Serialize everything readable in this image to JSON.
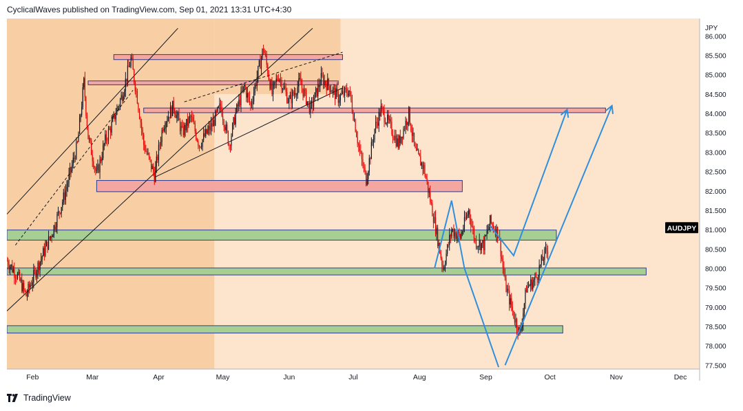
{
  "header": {
    "text": "CyclicalWaves published on TradingView.com, Sep 01, 2021 13:31 UTC+4:30"
  },
  "footer": {
    "brand": "TradingView"
  },
  "colors": {
    "background": "#fde4cc",
    "channel_fill": "#f8cfa5",
    "resistance_fill": "#f4a6a0",
    "resistance_border": "#2a3a8f",
    "support_fill": "#a8cf93",
    "support_border": "#2a3a8f",
    "candle_up": "#131722",
    "candle_down": "#e00000",
    "projection": "#2f8fdd",
    "symbol_badge": "#000000"
  },
  "chart_data": {
    "type": "candlestick",
    "symbol": "AUDJPY",
    "currency": "JPY",
    "x_start": "2021-01-20",
    "x_end": "2021-12-10",
    "ylim": [
      77.4,
      86.45
    ],
    "y_ticks": [
      "86.000",
      "85.500",
      "85.000",
      "84.500",
      "84.000",
      "83.500",
      "83.000",
      "82.500",
      "82.000",
      "81.500",
      "81.000",
      "80.500",
      "80.000",
      "79.500",
      "79.000",
      "78.500",
      "78.000",
      "77.500"
    ],
    "y_tick_values": [
      86.0,
      85.5,
      85.0,
      84.5,
      84.0,
      83.5,
      83.0,
      82.5,
      82.0,
      81.5,
      81.0,
      80.5,
      80.0,
      79.5,
      79.0,
      78.5,
      78.0,
      77.5
    ],
    "x_ticks": [
      {
        "label": "Feb",
        "date": "2021-02-01"
      },
      {
        "label": "Mar",
        "date": "2021-03-01"
      },
      {
        "label": "Apr",
        "date": "2021-04-01"
      },
      {
        "label": "May",
        "date": "2021-05-01"
      },
      {
        "label": "Jun",
        "date": "2021-06-01"
      },
      {
        "label": "Jul",
        "date": "2021-07-01"
      },
      {
        "label": "Aug",
        "date": "2021-08-01"
      },
      {
        "label": "Sep",
        "date": "2021-09-01"
      },
      {
        "label": "Oct",
        "date": "2021-10-01"
      },
      {
        "label": "Nov",
        "date": "2021-11-01"
      },
      {
        "label": "Dec",
        "date": "2021-12-01"
      }
    ],
    "price_path": [
      [
        "2021-01-20",
        80.2
      ],
      [
        "2021-01-25",
        79.8
      ],
      [
        "2021-01-29",
        79.3
      ],
      [
        "2021-02-03",
        80.0
      ],
      [
        "2021-02-10",
        80.9
      ],
      [
        "2021-02-16",
        81.9
      ],
      [
        "2021-02-22",
        83.2
      ],
      [
        "2021-02-25",
        84.8
      ],
      [
        "2021-02-27",
        83.4
      ],
      [
        "2021-03-03",
        82.4
      ],
      [
        "2021-03-07",
        83.3
      ],
      [
        "2021-03-10",
        83.7
      ],
      [
        "2021-03-15",
        84.5
      ],
      [
        "2021-03-19",
        85.4
      ],
      [
        "2021-03-22",
        84.4
      ],
      [
        "2021-03-25",
        83.2
      ],
      [
        "2021-03-30",
        82.4
      ],
      [
        "2021-04-03",
        83.7
      ],
      [
        "2021-04-08",
        84.2
      ],
      [
        "2021-04-12",
        83.5
      ],
      [
        "2021-04-16",
        83.9
      ],
      [
        "2021-04-20",
        83.2
      ],
      [
        "2021-04-26",
        83.7
      ],
      [
        "2021-04-30",
        84.2
      ],
      [
        "2021-05-04",
        83.2
      ],
      [
        "2021-05-07",
        84.0
      ],
      [
        "2021-05-11",
        84.7
      ],
      [
        "2021-05-14",
        84.2
      ],
      [
        "2021-05-18",
        85.2
      ],
      [
        "2021-05-20",
        85.7
      ],
      [
        "2021-05-24",
        84.5
      ],
      [
        "2021-05-27",
        85.0
      ],
      [
        "2021-06-01",
        84.3
      ],
      [
        "2021-06-06",
        84.8
      ],
      [
        "2021-06-11",
        84.1
      ],
      [
        "2021-06-16",
        84.9
      ],
      [
        "2021-06-20",
        84.7
      ],
      [
        "2021-06-24",
        84.4
      ],
      [
        "2021-06-29",
        84.6
      ],
      [
        "2021-07-01",
        84.0
      ],
      [
        "2021-07-04",
        83.0
      ],
      [
        "2021-07-07",
        82.3
      ],
      [
        "2021-07-11",
        83.6
      ],
      [
        "2021-07-14",
        84.1
      ],
      [
        "2021-07-18",
        83.7
      ],
      [
        "2021-07-22",
        83.2
      ],
      [
        "2021-07-27",
        84.0
      ],
      [
        "2021-07-30",
        83.0
      ],
      [
        "2021-08-03",
        82.6
      ],
      [
        "2021-08-08",
        81.2
      ],
      [
        "2021-08-12",
        80.0
      ],
      [
        "2021-08-16",
        81.0
      ],
      [
        "2021-08-20",
        80.8
      ],
      [
        "2021-08-24",
        81.5
      ],
      [
        "2021-08-27",
        80.7
      ],
      [
        "2021-08-31",
        80.6
      ],
      [
        "2021-09-03",
        81.2
      ],
      [
        "2021-09-07",
        80.9
      ],
      [
        "2021-09-10",
        79.6
      ],
      [
        "2021-09-14",
        78.8
      ],
      [
        "2021-09-17",
        78.3
      ],
      [
        "2021-09-20",
        79.5
      ],
      [
        "2021-09-24",
        79.7
      ],
      [
        "2021-09-28",
        80.3
      ],
      [
        "2021-09-30",
        80.5
      ]
    ],
    "zones": [
      {
        "kind": "resistance",
        "x0": "2021-03-11",
        "x1": "2021-06-26",
        "y0": 85.39,
        "y1": 85.52
      },
      {
        "kind": "resistance",
        "x0": "2021-02-27",
        "x1": "2021-06-24",
        "y0": 84.74,
        "y1": 84.84
      },
      {
        "kind": "resistance",
        "x0": "2021-03-25",
        "x1": "2021-10-27",
        "y0": 84.02,
        "y1": 84.14
      },
      {
        "kind": "resistance",
        "x0": "2021-03-03",
        "x1": "2021-08-21",
        "y0": 81.98,
        "y1": 82.27
      },
      {
        "kind": "support",
        "x0": "2021-01-20",
        "x1": "2021-10-04",
        "y0": 80.73,
        "y1": 80.99
      },
      {
        "kind": "support",
        "x0": "2021-01-20",
        "x1": "2021-11-15",
        "y0": 79.83,
        "y1": 80.01
      },
      {
        "kind": "support",
        "x0": "2021-01-20",
        "x1": "2021-10-07",
        "y0": 78.33,
        "y1": 78.52
      }
    ],
    "channel_shading": [
      {
        "x0": "2021-01-20",
        "x1": "2021-04-27",
        "y0": 77.4,
        "y1": 86.45
      },
      {
        "x0": "2021-04-27",
        "x1": "2021-06-25",
        "y0": 84.5,
        "y1": 86.45
      }
    ],
    "trend_lines": [
      {
        "style": "solid",
        "from": [
          "2021-01-20",
          81.4
        ],
        "to": [
          "2021-04-10",
          86.2
        ]
      },
      {
        "style": "solid",
        "from": [
          "2021-01-20",
          78.9
        ],
        "to": [
          "2021-04-27",
          83.9
        ]
      },
      {
        "style": "dashed",
        "from": [
          "2021-01-24",
          80.6
        ],
        "to": [
          "2021-03-20",
          84.6
        ]
      },
      {
        "style": "solid",
        "from": [
          "2021-04-27",
          83.9
        ],
        "to": [
          "2021-06-12",
          86.2
        ]
      },
      {
        "style": "dashed",
        "from": [
          "2021-04-13",
          84.3
        ],
        "to": [
          "2021-06-26",
          85.58
        ]
      },
      {
        "style": "solid",
        "from": [
          "2021-03-30",
          82.35
        ],
        "to": [
          "2021-06-26",
          84.66
        ]
      }
    ],
    "projections": [
      {
        "points": [
          [
            "2021-08-08",
            80.0
          ],
          [
            "2021-08-16",
            81.75
          ],
          [
            "2021-08-22",
            80.0
          ]
        ]
      },
      {
        "points": [
          [
            "2021-09-03",
            81.1
          ],
          [
            "2021-09-14",
            80.33
          ],
          [
            "2021-10-09",
            84.1
          ]
        ],
        "arrow": true
      },
      {
        "points": [
          [
            "2021-08-22",
            80.0
          ],
          [
            "2021-09-07",
            77.45
          ]
        ]
      },
      {
        "points": [
          [
            "2021-09-10",
            77.5
          ],
          [
            "2021-10-30",
            84.2
          ]
        ],
        "arrow": true
      }
    ],
    "last_price_label": "AUDJPY",
    "last_price": 81.05
  }
}
